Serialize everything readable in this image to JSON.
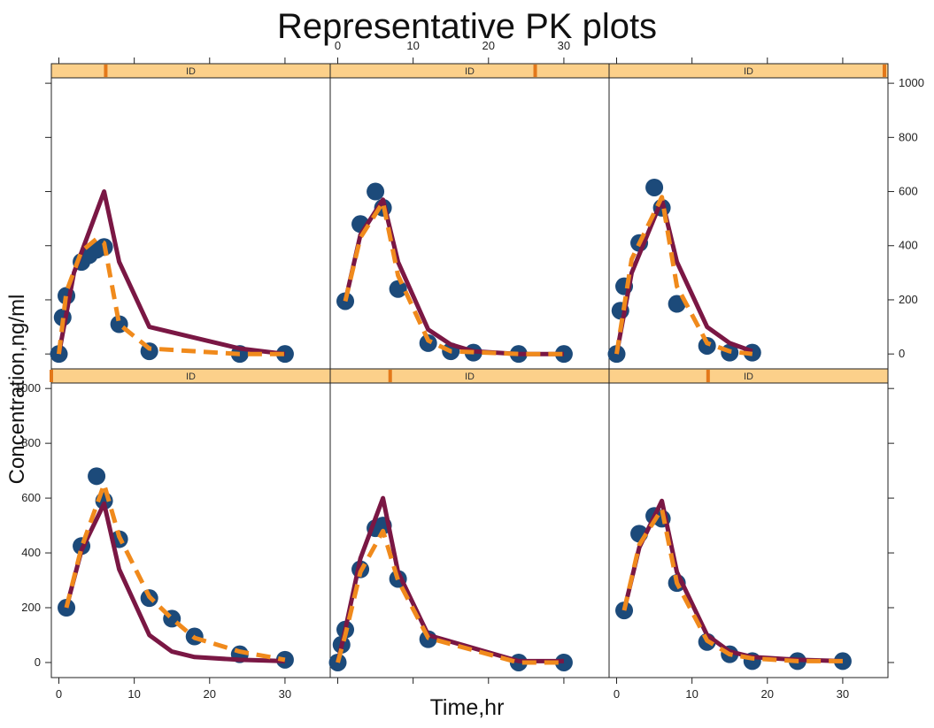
{
  "chart_data": {
    "type": "scatter",
    "title": "Representative PK plots",
    "xlabel": "Time,hr",
    "ylabel": "Concentration,ng/ml",
    "xlim": [
      -1,
      36
    ],
    "ylim": [
      -55,
      1020
    ],
    "x_ticks": [
      0,
      10,
      20,
      30
    ],
    "y_ticks": [
      0,
      200,
      400,
      600,
      800,
      1000
    ],
    "strip_label": "ID",
    "colors": {
      "observed": "#1c4a7a",
      "individual_pred": "#7a1744",
      "population_pred": "#f08a1c",
      "strip_bg": "#fcd08a",
      "strip_marker": "#e3781a"
    },
    "series_style": [
      {
        "key": "observed",
        "marker": "filled-circle"
      },
      {
        "key": "individual_pred",
        "line": "solid"
      },
      {
        "key": "population_pred",
        "line": "dashed"
      }
    ],
    "panels": [
      {
        "row": 1,
        "col": 1,
        "strip": "ID",
        "strip_marker_x": 0.195,
        "observed": [
          [
            0,
            0
          ],
          [
            0.5,
            135
          ],
          [
            1,
            215
          ],
          [
            3,
            340
          ],
          [
            4,
            365
          ],
          [
            5,
            385
          ],
          [
            6,
            395
          ],
          [
            8,
            110
          ],
          [
            12,
            10
          ],
          [
            24,
            0
          ],
          [
            30,
            0
          ]
        ],
        "individual_pred": [
          [
            0,
            0
          ],
          [
            2,
            300
          ],
          [
            6,
            600
          ],
          [
            8,
            340
          ],
          [
            12,
            100
          ],
          [
            24,
            20
          ],
          [
            30,
            0
          ]
        ],
        "population_pred": [
          [
            0,
            0
          ],
          [
            1,
            230
          ],
          [
            3,
            380
          ],
          [
            5,
            425
          ],
          [
            6,
            410
          ],
          [
            8,
            110
          ],
          [
            12,
            20
          ],
          [
            24,
            0
          ],
          [
            30,
            0
          ]
        ]
      },
      {
        "row": 1,
        "col": 2,
        "strip": "ID",
        "strip_marker_x": 0.735,
        "observed": [
          [
            1,
            195
          ],
          [
            3,
            480
          ],
          [
            5,
            600
          ],
          [
            6,
            540
          ],
          [
            8,
            240
          ],
          [
            12,
            40
          ],
          [
            15,
            10
          ],
          [
            18,
            5
          ],
          [
            24,
            0
          ],
          [
            30,
            0
          ]
        ],
        "individual_pred": [
          [
            1,
            195
          ],
          [
            3,
            440
          ],
          [
            6,
            570
          ],
          [
            8,
            340
          ],
          [
            12,
            90
          ],
          [
            15,
            35
          ],
          [
            18,
            10
          ],
          [
            24,
            0
          ],
          [
            30,
            0
          ]
        ],
        "population_pred": [
          [
            1,
            195
          ],
          [
            3,
            430
          ],
          [
            6,
            560
          ],
          [
            8,
            290
          ],
          [
            12,
            50
          ],
          [
            15,
            10
          ],
          [
            24,
            0
          ],
          [
            30,
            0
          ]
        ]
      },
      {
        "row": 1,
        "col": 3,
        "strip": "ID",
        "strip_marker_x": 0.99,
        "observed": [
          [
            0,
            0
          ],
          [
            0.5,
            160
          ],
          [
            1,
            250
          ],
          [
            3,
            410
          ],
          [
            5,
            615
          ],
          [
            6,
            540
          ],
          [
            8,
            185
          ],
          [
            12,
            30
          ],
          [
            15,
            5
          ],
          [
            18,
            5
          ]
        ],
        "individual_pred": [
          [
            0,
            0
          ],
          [
            2,
            300
          ],
          [
            6,
            570
          ],
          [
            8,
            340
          ],
          [
            12,
            100
          ],
          [
            15,
            40
          ],
          [
            18,
            10
          ]
        ],
        "population_pred": [
          [
            0,
            0
          ],
          [
            2,
            350
          ],
          [
            6,
            580
          ],
          [
            8,
            250
          ],
          [
            12,
            40
          ],
          [
            15,
            10
          ],
          [
            18,
            0
          ]
        ]
      },
      {
        "row": 2,
        "col": 1,
        "strip": "ID",
        "strip_marker_x": 0.0,
        "observed": [
          [
            1,
            200
          ],
          [
            3,
            425
          ],
          [
            5,
            680
          ],
          [
            6,
            590
          ],
          [
            8,
            450
          ],
          [
            12,
            235
          ],
          [
            15,
            160
          ],
          [
            18,
            95
          ],
          [
            24,
            30
          ],
          [
            30,
            10
          ]
        ],
        "individual_pred": [
          [
            1,
            200
          ],
          [
            3,
            410
          ],
          [
            6,
            580
          ],
          [
            8,
            340
          ],
          [
            12,
            100
          ],
          [
            15,
            40
          ],
          [
            18,
            20
          ],
          [
            24,
            10
          ],
          [
            30,
            5
          ]
        ],
        "population_pred": [
          [
            1,
            200
          ],
          [
            3,
            420
          ],
          [
            6,
            650
          ],
          [
            8,
            460
          ],
          [
            12,
            240
          ],
          [
            15,
            160
          ],
          [
            18,
            90
          ],
          [
            24,
            40
          ],
          [
            30,
            10
          ]
        ]
      },
      {
        "row": 2,
        "col": 2,
        "strip": "ID",
        "strip_marker_x": 0.215,
        "observed": [
          [
            0,
            0
          ],
          [
            0.5,
            65
          ],
          [
            1,
            120
          ],
          [
            3,
            340
          ],
          [
            5,
            490
          ],
          [
            6,
            500
          ],
          [
            8,
            305
          ],
          [
            12,
            85
          ],
          [
            24,
            0
          ],
          [
            30,
            0
          ]
        ],
        "individual_pred": [
          [
            0,
            0
          ],
          [
            1,
            120
          ],
          [
            3,
            380
          ],
          [
            6,
            600
          ],
          [
            8,
            330
          ],
          [
            12,
            100
          ],
          [
            24,
            5
          ],
          [
            30,
            5
          ]
        ],
        "population_pred": [
          [
            0,
            0
          ],
          [
            1,
            100
          ],
          [
            3,
            330
          ],
          [
            6,
            480
          ],
          [
            8,
            300
          ],
          [
            12,
            90
          ],
          [
            24,
            0
          ],
          [
            30,
            0
          ]
        ]
      },
      {
        "row": 2,
        "col": 3,
        "strip": "ID",
        "strip_marker_x": 0.355,
        "observed": [
          [
            1,
            190
          ],
          [
            3,
            470
          ],
          [
            5,
            535
          ],
          [
            6,
            525
          ],
          [
            8,
            290
          ],
          [
            12,
            75
          ],
          [
            15,
            30
          ],
          [
            18,
            5
          ],
          [
            24,
            5
          ],
          [
            30,
            5
          ]
        ],
        "individual_pred": [
          [
            1,
            190
          ],
          [
            3,
            420
          ],
          [
            6,
            590
          ],
          [
            8,
            330
          ],
          [
            12,
            100
          ],
          [
            15,
            40
          ],
          [
            18,
            20
          ],
          [
            24,
            10
          ],
          [
            30,
            5
          ]
        ],
        "population_pred": [
          [
            1,
            190
          ],
          [
            3,
            430
          ],
          [
            6,
            560
          ],
          [
            8,
            290
          ],
          [
            12,
            80
          ],
          [
            15,
            30
          ],
          [
            18,
            15
          ],
          [
            24,
            5
          ],
          [
            30,
            5
          ]
        ]
      }
    ]
  }
}
